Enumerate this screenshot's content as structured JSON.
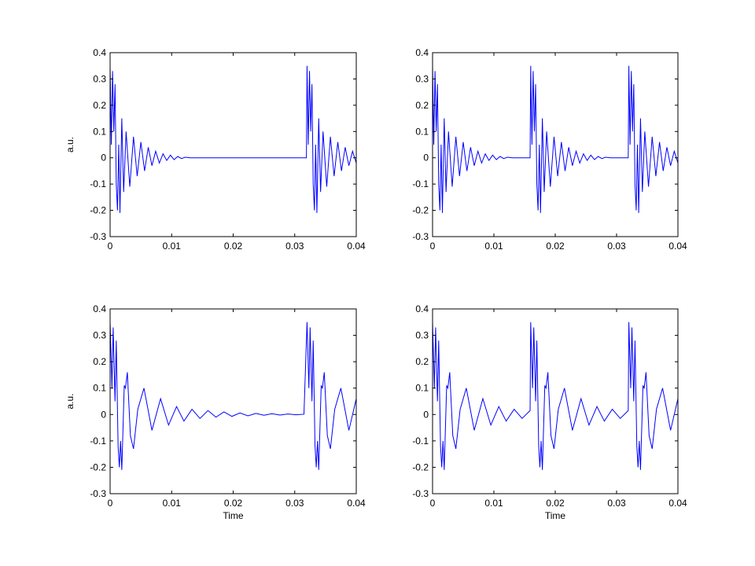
{
  "chart_data": [
    {
      "type": "line",
      "ylabel": "a.u.",
      "color": "#0000ff",
      "xlim": [
        0,
        0.04
      ],
      "ylim": [
        -0.3,
        0.4
      ],
      "xticks": [
        0,
        0.01,
        0.02,
        0.03,
        0.04
      ],
      "yticks": [
        -0.3,
        -0.2,
        -0.1,
        0,
        0.1,
        0.2,
        0.3,
        0.4
      ],
      "x": [
        0,
        0.0002,
        0.0004,
        0.0006,
        0.0008,
        0.001,
        0.0012,
        0.0014,
        0.0016,
        0.0019,
        0.0022,
        0.0026,
        0.0032,
        0.0038,
        0.0044,
        0.005,
        0.0056,
        0.0062,
        0.0068,
        0.0074,
        0.008,
        0.0086,
        0.0092,
        0.0098,
        0.0104,
        0.011,
        0.0116,
        0.0122,
        0.013,
        0.0319,
        0.032,
        0.0322,
        0.0324,
        0.0326,
        0.0328,
        0.033,
        0.0332,
        0.0334,
        0.0336,
        0.0339,
        0.0342,
        0.0346,
        0.0352,
        0.0358,
        0.0364,
        0.037,
        0.0376,
        0.0382,
        0.0388,
        0.0394,
        0.04
      ],
      "values": [
        0.35,
        0.05,
        0.33,
        0.1,
        0.28,
        -0.1,
        -0.2,
        0.05,
        -0.21,
        0.15,
        -0.13,
        0.1,
        -0.11,
        0.08,
        -0.07,
        0.06,
        -0.05,
        0.04,
        -0.03,
        0.025,
        -0.02,
        0.015,
        -0.01,
        0.01,
        -0.007,
        0.005,
        -0.003,
        0.002,
        0,
        0,
        0.35,
        0.05,
        0.33,
        0.1,
        0.28,
        -0.1,
        -0.2,
        0.05,
        -0.21,
        0.15,
        -0.13,
        0.1,
        -0.11,
        0.08,
        -0.07,
        0.06,
        -0.05,
        0.04,
        -0.03,
        0.025,
        -0.02
      ]
    },
    {
      "type": "line",
      "color": "#0000ff",
      "xlim": [
        0,
        0.04
      ],
      "ylim": [
        -0.3,
        0.4
      ],
      "xticks": [
        0,
        0.01,
        0.02,
        0.03,
        0.04
      ],
      "yticks": [
        -0.3,
        -0.2,
        -0.1,
        0,
        0.1,
        0.2,
        0.3,
        0.4
      ],
      "x": [
        0,
        0.0002,
        0.0004,
        0.0006,
        0.0008,
        0.001,
        0.0012,
        0.0014,
        0.0016,
        0.0019,
        0.0022,
        0.0026,
        0.0032,
        0.0038,
        0.0044,
        0.005,
        0.0056,
        0.0062,
        0.0068,
        0.0074,
        0.008,
        0.0086,
        0.0092,
        0.0098,
        0.0104,
        0.011,
        0.0116,
        0.0122,
        0.013,
        0.0159,
        0.016,
        0.0162,
        0.0164,
        0.0166,
        0.0168,
        0.017,
        0.0172,
        0.0174,
        0.0176,
        0.0179,
        0.0182,
        0.0186,
        0.0192,
        0.0198,
        0.0204,
        0.021,
        0.0216,
        0.0222,
        0.0228,
        0.0234,
        0.024,
        0.0246,
        0.0252,
        0.0258,
        0.0264,
        0.027,
        0.0276,
        0.0282,
        0.029,
        0.0319,
        0.032,
        0.0322,
        0.0324,
        0.0326,
        0.0328,
        0.033,
        0.0332,
        0.0334,
        0.0336,
        0.0339,
        0.0342,
        0.0346,
        0.0352,
        0.0358,
        0.0364,
        0.037,
        0.0376,
        0.0382,
        0.0388,
        0.0394,
        0.04
      ],
      "values": [
        0.35,
        0.05,
        0.33,
        0.1,
        0.28,
        -0.1,
        -0.2,
        0.05,
        -0.21,
        0.15,
        -0.13,
        0.1,
        -0.11,
        0.08,
        -0.07,
        0.06,
        -0.05,
        0.04,
        -0.03,
        0.025,
        -0.02,
        0.015,
        -0.01,
        0.01,
        -0.007,
        0.005,
        -0.003,
        0.002,
        0,
        0,
        0.35,
        0.05,
        0.33,
        0.1,
        0.28,
        -0.1,
        -0.2,
        0.05,
        -0.21,
        0.15,
        -0.13,
        0.1,
        -0.11,
        0.08,
        -0.07,
        0.06,
        -0.05,
        0.04,
        -0.03,
        0.025,
        -0.02,
        0.015,
        -0.01,
        0.01,
        -0.007,
        0.005,
        -0.003,
        0.002,
        0,
        0,
        0.35,
        0.05,
        0.33,
        0.1,
        0.28,
        -0.1,
        -0.2,
        0.05,
        -0.21,
        0.15,
        -0.13,
        0.1,
        -0.11,
        0.08,
        -0.07,
        0.06,
        -0.05,
        0.04,
        -0.03,
        0.025,
        -0.02
      ]
    },
    {
      "type": "line",
      "ylabel": "a.u.",
      "xlabel": "Time",
      "color": "#0000ff",
      "xlim": [
        0,
        0.04
      ],
      "ylim": [
        -0.3,
        0.4
      ],
      "xticks": [
        0,
        0.01,
        0.02,
        0.03,
        0.04
      ],
      "yticks": [
        -0.3,
        -0.2,
        -0.1,
        0,
        0.1,
        0.2,
        0.3,
        0.4
      ],
      "x": [
        0,
        0.0003,
        0.0005,
        0.0008,
        0.001,
        0.0013,
        0.0015,
        0.0017,
        0.0019,
        0.0023,
        0.0025,
        0.0028,
        0.0033,
        0.0038,
        0.0045,
        0.0055,
        0.0068,
        0.0082,
        0.0095,
        0.0108,
        0.012,
        0.0133,
        0.0146,
        0.0159,
        0.0172,
        0.0185,
        0.0198,
        0.0211,
        0.0224,
        0.0237,
        0.025,
        0.0263,
        0.0276,
        0.0289,
        0.0302,
        0.0315,
        0.032,
        0.0323,
        0.0325,
        0.0328,
        0.033,
        0.0333,
        0.0335,
        0.0337,
        0.0339,
        0.0343,
        0.0345,
        0.0348,
        0.0353,
        0.0358,
        0.0365,
        0.0375,
        0.0388,
        0.04
      ],
      "values": [
        0.35,
        0.1,
        0.33,
        0.05,
        0.28,
        -0.12,
        -0.2,
        -0.1,
        -0.21,
        0.11,
        0.1,
        0.16,
        -0.08,
        -0.13,
        0.02,
        0.1,
        -0.06,
        0.06,
        -0.04,
        0.03,
        -0.025,
        0.02,
        -0.015,
        0.015,
        -0.01,
        0.01,
        -0.007,
        0.006,
        -0.005,
        0.004,
        -0.003,
        0.003,
        -0.002,
        0.002,
        -0.001,
        0.001,
        0.35,
        0.1,
        0.33,
        0.05,
        0.28,
        -0.12,
        -0.2,
        -0.1,
        -0.21,
        0.11,
        0.1,
        0.16,
        -0.08,
        -0.13,
        0.02,
        0.1,
        -0.06,
        0.06
      ]
    },
    {
      "type": "line",
      "xlabel": "Time",
      "color": "#0000ff",
      "xlim": [
        0,
        0.04
      ],
      "ylim": [
        -0.3,
        0.4
      ],
      "xticks": [
        0,
        0.01,
        0.02,
        0.03,
        0.04
      ],
      "yticks": [
        -0.3,
        -0.2,
        -0.1,
        0,
        0.1,
        0.2,
        0.3,
        0.4
      ],
      "x": [
        0,
        0.0003,
        0.0005,
        0.0008,
        0.001,
        0.0013,
        0.0015,
        0.0017,
        0.0019,
        0.0023,
        0.0025,
        0.0028,
        0.0033,
        0.0038,
        0.0045,
        0.0055,
        0.0068,
        0.0082,
        0.0095,
        0.0108,
        0.012,
        0.0133,
        0.0146,
        0.0159,
        0.016,
        0.0163,
        0.0165,
        0.0168,
        0.017,
        0.0173,
        0.0175,
        0.0177,
        0.0179,
        0.0183,
        0.0185,
        0.0188,
        0.0193,
        0.0198,
        0.0205,
        0.0215,
        0.0228,
        0.0242,
        0.0255,
        0.0268,
        0.028,
        0.0293,
        0.0306,
        0.0319,
        0.032,
        0.0323,
        0.0325,
        0.0328,
        0.033,
        0.0333,
        0.0335,
        0.0337,
        0.0339,
        0.0343,
        0.0345,
        0.0348,
        0.0353,
        0.0358,
        0.0365,
        0.0375,
        0.0388,
        0.04
      ],
      "values": [
        0.35,
        0.1,
        0.33,
        0.05,
        0.28,
        -0.12,
        -0.2,
        -0.1,
        -0.21,
        0.11,
        0.1,
        0.16,
        -0.08,
        -0.13,
        0.02,
        0.1,
        -0.06,
        0.06,
        -0.04,
        0.03,
        -0.025,
        0.02,
        -0.015,
        0.015,
        0.35,
        0.1,
        0.33,
        0.05,
        0.28,
        -0.12,
        -0.2,
        -0.1,
        -0.21,
        0.11,
        0.1,
        0.16,
        -0.08,
        -0.13,
        0.02,
        0.1,
        -0.06,
        0.06,
        -0.04,
        0.03,
        -0.025,
        0.02,
        -0.015,
        0.015,
        0.35,
        0.1,
        0.33,
        0.05,
        0.28,
        -0.12,
        -0.2,
        -0.1,
        -0.21,
        0.11,
        0.1,
        0.16,
        -0.08,
        -0.13,
        0.02,
        0.1,
        -0.06,
        0.06
      ]
    }
  ]
}
